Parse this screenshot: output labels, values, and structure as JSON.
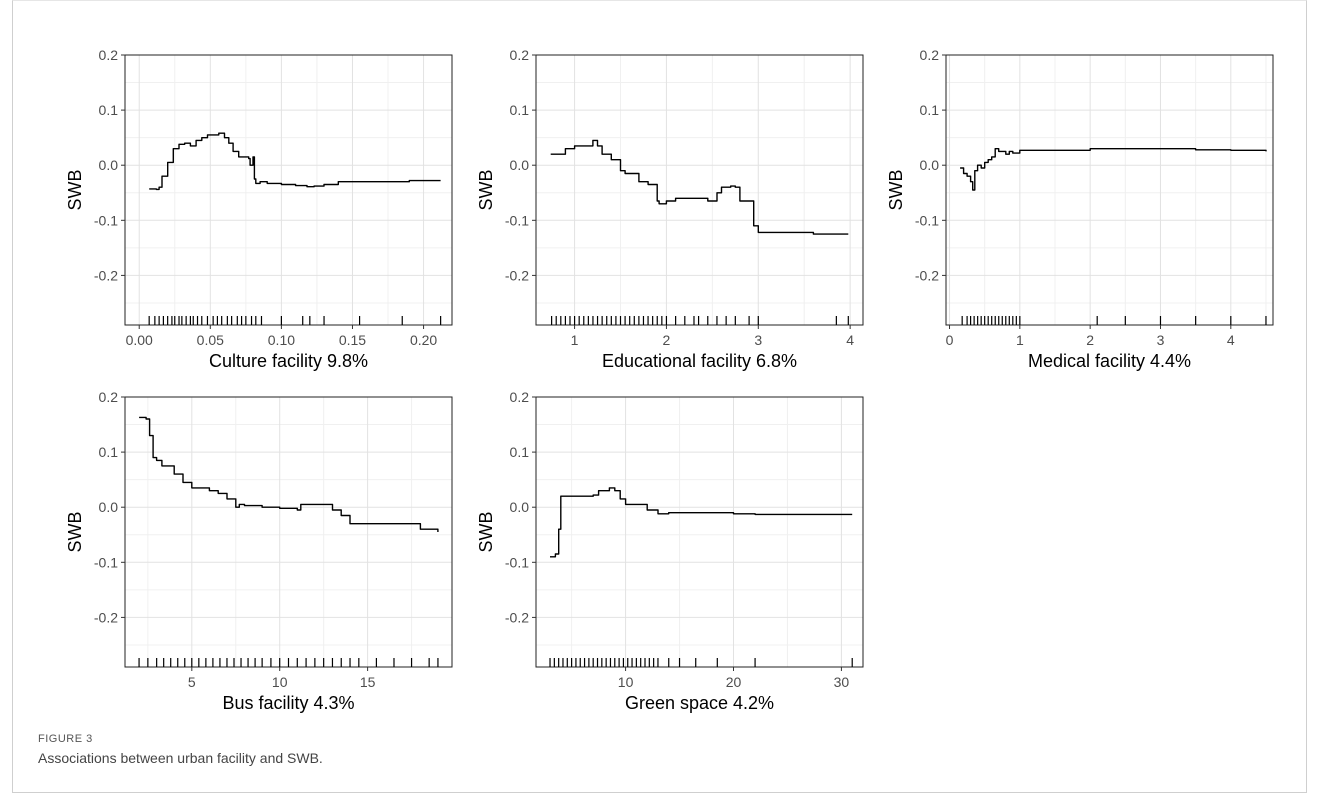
{
  "figure": {
    "label": "FIGURE 3",
    "caption": "Associations between urban facility and SWB."
  },
  "chart_data": [
    {
      "type": "line",
      "xlabel": "Culture facility 9.8%",
      "ylabel": "SWB",
      "xlim": [
        -0.01,
        0.22
      ],
      "ylim": [
        -0.29,
        0.2
      ],
      "xticks": [
        0.0,
        0.05,
        0.1,
        0.15,
        0.2
      ],
      "xtick_labels": [
        "0.00",
        "0.05",
        "0.10",
        "0.15",
        "0.20"
      ],
      "yticks": [
        0.2,
        0.1,
        0.0,
        -0.1,
        -0.2
      ],
      "ytick_labels": [
        "0.2",
        "0.1",
        "0.0",
        "-0.1",
        "-0.2"
      ],
      "grid": true,
      "x": [
        0.007,
        0.012,
        0.014,
        0.016,
        0.02,
        0.024,
        0.028,
        0.032,
        0.036,
        0.04,
        0.044,
        0.048,
        0.052,
        0.056,
        0.06,
        0.063,
        0.066,
        0.07,
        0.074,
        0.077,
        0.078,
        0.08,
        0.081,
        0.082,
        0.085,
        0.09,
        0.1,
        0.11,
        0.118,
        0.123,
        0.13,
        0.14,
        0.15,
        0.17,
        0.19,
        0.212
      ],
      "y": [
        -0.043,
        -0.044,
        -0.04,
        -0.02,
        0.005,
        0.03,
        0.038,
        0.04,
        0.035,
        0.045,
        0.05,
        0.055,
        0.055,
        0.058,
        0.05,
        0.04,
        0.025,
        0.015,
        0.015,
        0.012,
        0.0,
        0.015,
        -0.025,
        -0.033,
        -0.03,
        -0.033,
        -0.035,
        -0.037,
        -0.039,
        -0.038,
        -0.035,
        -0.03,
        -0.03,
        -0.03,
        -0.028,
        -0.028
      ],
      "rug": [
        0.007,
        0.011,
        0.014,
        0.017,
        0.02,
        0.023,
        0.025,
        0.028,
        0.03,
        0.033,
        0.036,
        0.038,
        0.041,
        0.044,
        0.048,
        0.052,
        0.055,
        0.058,
        0.062,
        0.065,
        0.069,
        0.072,
        0.075,
        0.079,
        0.082,
        0.086,
        0.1,
        0.115,
        0.12,
        0.13,
        0.155,
        0.185,
        0.212
      ]
    },
    {
      "type": "line",
      "xlabel": "Educational facility 6.8%",
      "ylabel": "SWB",
      "xlim": [
        0.58,
        4.14
      ],
      "ylim": [
        -0.29,
        0.2
      ],
      "xticks": [
        1,
        2,
        3,
        4
      ],
      "xtick_labels": [
        "1",
        "2",
        "3",
        "4"
      ],
      "yticks": [
        0.2,
        0.1,
        0.0,
        -0.1,
        -0.2
      ],
      "ytick_labels": [
        "0.2",
        "0.1",
        "0.0",
        "-0.1",
        "-0.2"
      ],
      "grid": true,
      "x": [
        0.74,
        0.85,
        0.9,
        1.0,
        1.1,
        1.2,
        1.25,
        1.3,
        1.4,
        1.5,
        1.55,
        1.6,
        1.7,
        1.8,
        1.9,
        1.92,
        2.0,
        2.1,
        2.3,
        2.45,
        2.55,
        2.6,
        2.7,
        2.75,
        2.8,
        2.95,
        3.0,
        3.3,
        3.6,
        3.98
      ],
      "y": [
        0.02,
        0.02,
        0.03,
        0.035,
        0.035,
        0.045,
        0.035,
        0.02,
        0.01,
        -0.01,
        -0.015,
        -0.015,
        -0.03,
        -0.035,
        -0.065,
        -0.07,
        -0.065,
        -0.06,
        -0.06,
        -0.065,
        -0.05,
        -0.04,
        -0.038,
        -0.04,
        -0.065,
        -0.11,
        -0.122,
        -0.122,
        -0.125,
        -0.125
      ],
      "rug": [
        0.75,
        0.8,
        0.85,
        0.9,
        0.95,
        1.0,
        1.05,
        1.1,
        1.15,
        1.2,
        1.25,
        1.3,
        1.35,
        1.4,
        1.45,
        1.5,
        1.55,
        1.6,
        1.65,
        1.7,
        1.75,
        1.8,
        1.85,
        1.9,
        1.95,
        2.0,
        2.1,
        2.2,
        2.3,
        2.35,
        2.45,
        2.55,
        2.65,
        2.75,
        2.9,
        3.0,
        3.85,
        3.98
      ]
    },
    {
      "type": "line",
      "xlabel": "Medical facility 4.4%",
      "ylabel": "SWB",
      "xlim": [
        -0.05,
        4.6
      ],
      "ylim": [
        -0.29,
        0.2
      ],
      "xticks": [
        0,
        1,
        2,
        3,
        4
      ],
      "xtick_labels": [
        "0",
        "1",
        "2",
        "3",
        "4"
      ],
      "yticks": [
        0.2,
        0.1,
        0.0,
        -0.1,
        -0.2
      ],
      "ytick_labels": [
        "0.2",
        "0.1",
        "0.0",
        "-0.1",
        "-0.2"
      ],
      "grid": true,
      "x": [
        0.15,
        0.2,
        0.25,
        0.3,
        0.33,
        0.36,
        0.4,
        0.45,
        0.5,
        0.55,
        0.6,
        0.65,
        0.7,
        0.75,
        0.8,
        0.85,
        0.9,
        1.0,
        1.5,
        2.0,
        2.5,
        3.0,
        3.5,
        4.0,
        4.5
      ],
      "y": [
        -0.005,
        -0.015,
        -0.02,
        -0.03,
        -0.045,
        -0.01,
        0.0,
        -0.005,
        0.005,
        0.01,
        0.015,
        0.03,
        0.025,
        0.025,
        0.02,
        0.025,
        0.022,
        0.027,
        0.027,
        0.03,
        0.03,
        0.03,
        0.028,
        0.027,
        0.025
      ],
      "rug": [
        0.18,
        0.25,
        0.3,
        0.35,
        0.4,
        0.45,
        0.5,
        0.55,
        0.6,
        0.65,
        0.7,
        0.75,
        0.8,
        0.85,
        0.9,
        0.95,
        1.0,
        2.1,
        2.5,
        3.0,
        3.5,
        4.0,
        4.5
      ]
    },
    {
      "type": "line",
      "xlabel": "Bus facility 4.3%",
      "ylabel": "SWB",
      "xlim": [
        1.2,
        19.8
      ],
      "ylim": [
        -0.29,
        0.2
      ],
      "xticks": [
        5,
        10,
        15
      ],
      "xtick_labels": [
        "5",
        "10",
        "15"
      ],
      "yticks": [
        0.2,
        0.1,
        0.0,
        -0.1,
        -0.2
      ],
      "ytick_labels": [
        "0.2",
        "0.1",
        "0.0",
        "-0.1",
        "-0.2"
      ],
      "grid": true,
      "x": [
        2.0,
        2.4,
        2.6,
        2.8,
        3.0,
        3.3,
        3.6,
        4.0,
        4.5,
        5.0,
        5.5,
        6.0,
        6.5,
        7.0,
        7.5,
        7.7,
        8.0,
        9.0,
        10.0,
        11.0,
        11.2,
        12.0,
        12.8,
        13.0,
        13.5,
        14.0,
        15.0,
        16.0,
        17.0,
        18.0,
        19.0
      ],
      "y": [
        0.163,
        0.16,
        0.13,
        0.09,
        0.085,
        0.075,
        0.075,
        0.06,
        0.045,
        0.035,
        0.035,
        0.03,
        0.025,
        0.015,
        0.0,
        0.005,
        0.003,
        0.0,
        -0.002,
        -0.005,
        0.005,
        0.005,
        0.005,
        -0.005,
        -0.015,
        -0.03,
        -0.03,
        -0.03,
        -0.03,
        -0.04,
        -0.045
      ],
      "rug": [
        2.0,
        2.5,
        3.0,
        3.4,
        3.8,
        4.2,
        4.6,
        5.0,
        5.4,
        5.8,
        6.2,
        6.6,
        7.0,
        7.4,
        7.8,
        8.2,
        8.6,
        9.0,
        9.5,
        10.0,
        10.5,
        11.0,
        11.5,
        12.0,
        12.5,
        13.0,
        13.5,
        14.0,
        14.5,
        15.5,
        16.5,
        17.5,
        18.5,
        19.0
      ]
    },
    {
      "type": "line",
      "xlabel": "Green space 4.2%",
      "ylabel": "SWB",
      "xlim": [
        1.7,
        32.0
      ],
      "ylim": [
        -0.29,
        0.2
      ],
      "xticks": [
        10,
        20,
        30
      ],
      "xtick_labels": [
        "10",
        "20",
        "30"
      ],
      "yticks": [
        0.2,
        0.1,
        0.0,
        -0.1,
        -0.2
      ],
      "ytick_labels": [
        "0.2",
        "0.1",
        "0.0",
        "-0.1",
        "-0.2"
      ],
      "grid": true,
      "x": [
        3.0,
        3.5,
        3.8,
        4.0,
        4.5,
        5.0,
        6.0,
        7.0,
        7.5,
        8.0,
        8.5,
        9.0,
        9.5,
        10.0,
        11.0,
        12.0,
        13.0,
        14.0,
        16.0,
        18.0,
        20.0,
        22.0,
        25.0,
        28.0,
        31.0
      ],
      "y": [
        -0.09,
        -0.085,
        -0.04,
        0.02,
        0.02,
        0.02,
        0.02,
        0.022,
        0.03,
        0.03,
        0.035,
        0.03,
        0.015,
        0.005,
        0.005,
        -0.005,
        -0.012,
        -0.01,
        -0.01,
        -0.01,
        -0.012,
        -0.013,
        -0.013,
        -0.013,
        -0.013
      ],
      "rug": [
        3.0,
        3.4,
        3.8,
        4.2,
        4.6,
        5.0,
        5.4,
        5.8,
        6.2,
        6.6,
        7.0,
        7.4,
        7.8,
        8.2,
        8.6,
        9.0,
        9.4,
        9.8,
        10.2,
        10.6,
        11.0,
        11.4,
        11.8,
        12.2,
        12.6,
        13.0,
        14.0,
        15.0,
        16.5,
        18.5,
        22.0,
        31.0
      ]
    }
  ]
}
